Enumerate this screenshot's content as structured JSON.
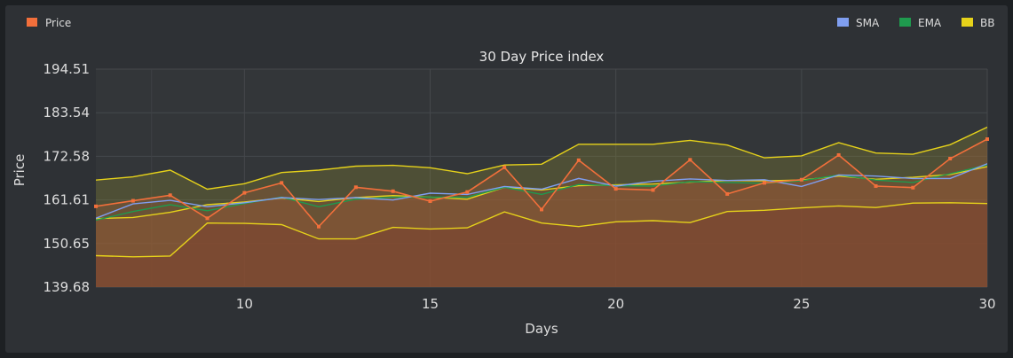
{
  "chart_data": {
    "type": "line",
    "title": "30 Day Price index",
    "xlabel": "Days",
    "ylabel": "Price",
    "xlim": [
      6,
      30
    ],
    "ylim": [
      139.68,
      194.51
    ],
    "x_ticks": [
      10,
      15,
      20,
      25,
      30
    ],
    "y_ticks": [
      "194.51",
      "183.54",
      "172.58",
      "161.61",
      "150.65",
      "139.68"
    ],
    "grid": true,
    "legend_left": [
      {
        "name": "Price",
        "color": "#f26f3b"
      }
    ],
    "legend_right": [
      {
        "name": "SMA",
        "color": "#7f9ef0"
      },
      {
        "name": "EMA",
        "color": "#1f9a4e"
      },
      {
        "name": "BB",
        "color": "#e6d21a"
      }
    ],
    "x": [
      6,
      7,
      8,
      9,
      10,
      11,
      12,
      13,
      14,
      15,
      16,
      17,
      18,
      19,
      20,
      21,
      22,
      23,
      24,
      25,
      26,
      27,
      28,
      29,
      30
    ],
    "series": [
      {
        "name": "Price",
        "color": "#f26f3b",
        "values": [
          160.0,
          161.4,
          162.8,
          157.0,
          163.4,
          165.9,
          154.9,
          164.8,
          163.8,
          161.3,
          163.6,
          169.8,
          159.2,
          171.6,
          164.4,
          164.1,
          171.7,
          163.1,
          165.9,
          166.7,
          172.9,
          165.1,
          164.7,
          172.0,
          176.9
        ]
      },
      {
        "name": "SMA",
        "color": "#7f9ef0",
        "values": [
          157.0,
          160.6,
          161.5,
          159.9,
          160.9,
          162.2,
          161.7,
          162.2,
          161.6,
          163.3,
          163.0,
          165.0,
          164.3,
          167.0,
          165.1,
          166.3,
          166.9,
          166.5,
          166.7,
          165.0,
          167.9,
          167.6,
          167.0,
          167.0,
          170.7
        ]
      },
      {
        "name": "EMA",
        "color": "#1f9a4e",
        "values": [
          156.5,
          158.7,
          160.4,
          158.9,
          160.7,
          162.3,
          159.9,
          161.8,
          162.3,
          162.3,
          162.3,
          164.8,
          163.0,
          165.5,
          165.2,
          165.1,
          166.2,
          166.0,
          165.8,
          166.4,
          167.9,
          166.6,
          166.0,
          168.2,
          170.4
        ]
      },
      {
        "name": "BB upper",
        "color": "#e6d21a",
        "values": [
          166.6,
          167.4,
          169.1,
          164.3,
          165.7,
          168.5,
          169.1,
          170.1,
          170.3,
          169.7,
          168.2,
          170.4,
          170.6,
          175.6,
          175.6,
          175.6,
          176.6,
          175.4,
          172.2,
          172.7,
          176.0,
          173.4,
          173.1,
          175.5,
          179.9
        ]
      },
      {
        "name": "BB middle",
        "color": "#e6d21a",
        "values": [
          156.9,
          157.2,
          158.5,
          160.4,
          161.1,
          162.1,
          161.2,
          162.2,
          162.7,
          162.3,
          161.8,
          164.8,
          164.1,
          165.2,
          165.4,
          165.6,
          166.1,
          166.5,
          166.4,
          166.6,
          167.6,
          166.8,
          167.3,
          168.0,
          170.0
        ]
      },
      {
        "name": "BB lower",
        "color": "#e6d21a",
        "values": [
          147.6,
          147.3,
          147.5,
          155.8,
          155.7,
          155.4,
          151.8,
          151.8,
          154.7,
          154.3,
          154.6,
          158.6,
          155.8,
          154.9,
          156.1,
          156.4,
          155.9,
          158.7,
          159.0,
          159.6,
          160.1,
          159.7,
          160.8,
          160.9,
          160.7
        ]
      }
    ]
  }
}
